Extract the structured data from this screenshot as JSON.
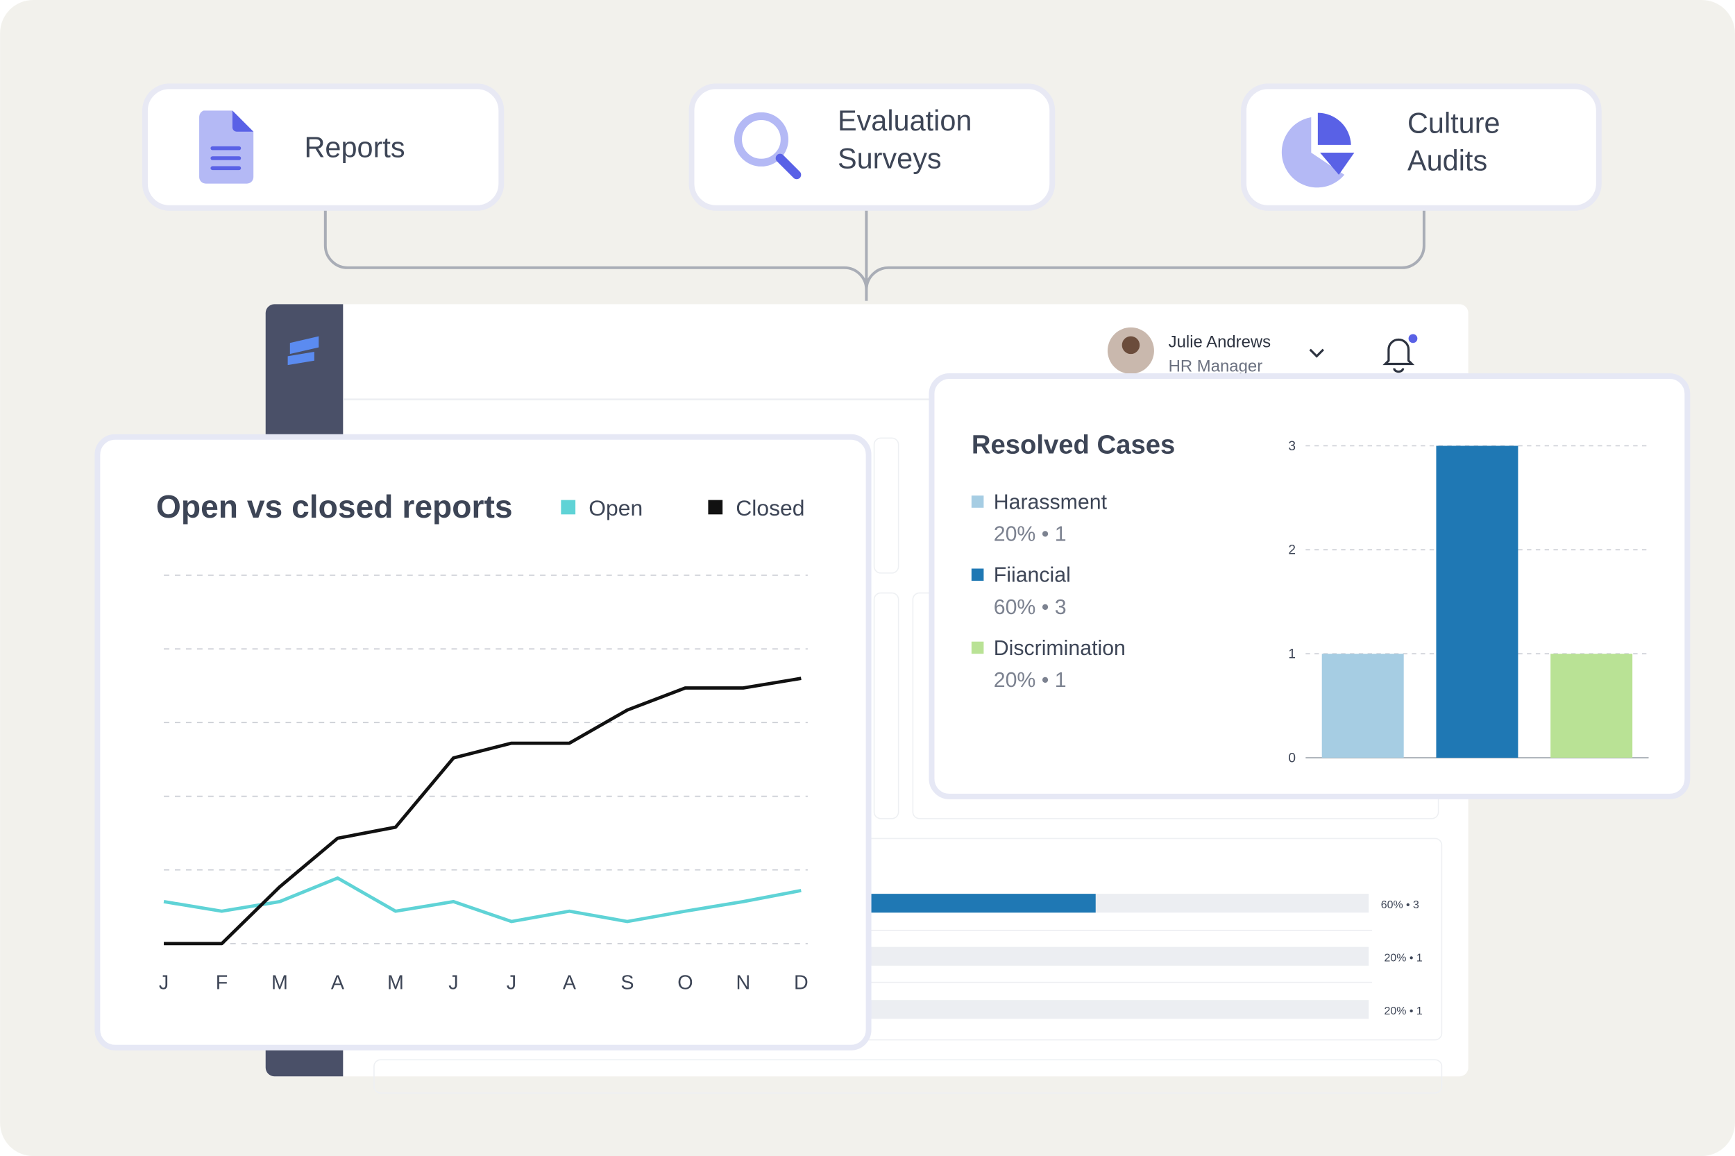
{
  "cards": [
    {
      "lines": [
        "Reports"
      ]
    },
    {
      "lines": [
        "Evaluation",
        "Surveys"
      ]
    },
    {
      "lines": [
        "Culture",
        "Audits"
      ]
    }
  ],
  "user": {
    "name": "Julie Andrews",
    "role": "HR Manager"
  },
  "progress_bars": [
    {
      "value": 60,
      "label": "60% • 3"
    },
    {
      "value": 20,
      "label": "20% • 1"
    },
    {
      "value": 20,
      "label": "20% • 1"
    }
  ],
  "chart_data": [
    {
      "type": "line",
      "title": "Open vs closed reports",
      "categories": [
        "J",
        "F",
        "M",
        "A",
        "M",
        "J",
        "J",
        "A",
        "S",
        "O",
        "N",
        "D"
      ],
      "series": [
        {
          "name": "Open",
          "color": "#5fd3d6",
          "values": [
            0.57,
            0.44,
            0.57,
            0.89,
            0.44,
            0.57,
            0.3,
            0.44,
            0.3,
            0.44,
            0.57,
            0.72
          ]
        },
        {
          "name": "Closed",
          "color": "#111111",
          "values": [
            0,
            0,
            0.77,
            1.43,
            1.58,
            2.52,
            2.72,
            2.72,
            3.17,
            3.47,
            3.47,
            3.6
          ]
        }
      ],
      "ylim": [
        0,
        5
      ],
      "gridlines": [
        0,
        1,
        2,
        3,
        4,
        5
      ]
    },
    {
      "type": "bar",
      "title": "Resolved Cases",
      "categories": [
        "Harassment",
        "Fiiancial",
        "Discrimination"
      ],
      "values": [
        1,
        3,
        1
      ],
      "value_labels": [
        "20% • 1",
        "60% • 3",
        "20% • 1"
      ],
      "colors": [
        "#a6cde3",
        "#1f78b4",
        "#b9e295"
      ],
      "ylim": [
        0,
        3
      ],
      "yticks": [
        0,
        1,
        2,
        3
      ],
      "grid": true
    }
  ]
}
